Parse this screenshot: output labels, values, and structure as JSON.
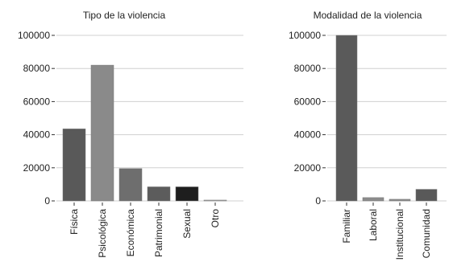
{
  "chart_data": [
    {
      "type": "bar",
      "title": "Tipo de la violencia",
      "xlabel": "",
      "ylabel": "",
      "categories": [
        "Física",
        "Psicológica",
        "Económica",
        "Patrimonial",
        "Sexual",
        "Otro"
      ],
      "values": [
        43500,
        82000,
        19500,
        8500,
        8500,
        500
      ],
      "colors": [
        "#595959",
        "#8a8a8a",
        "#6e6e6e",
        "#5c5c5c",
        "#1e1e1e",
        "#a6a6a6"
      ],
      "yticks": [
        "0",
        "20000",
        "40000",
        "60000",
        "80000",
        "100000"
      ],
      "ylim": [
        0,
        100000
      ],
      "grid": true
    },
    {
      "type": "bar",
      "title": "Modalidad de la violencia",
      "xlabel": "",
      "ylabel": "",
      "categories": [
        "Familiar",
        "Laboral",
        "Institucional",
        "Comunidad"
      ],
      "values": [
        100000,
        2000,
        1000,
        7000
      ],
      "colors": [
        "#5a5a5a",
        "#8c8c8c",
        "#8c8c8c",
        "#595959"
      ],
      "yticks": [
        "0",
        "20000",
        "40000",
        "60000",
        "80000",
        "100000"
      ],
      "ylim": [
        0,
        100000
      ],
      "grid": true
    }
  ]
}
